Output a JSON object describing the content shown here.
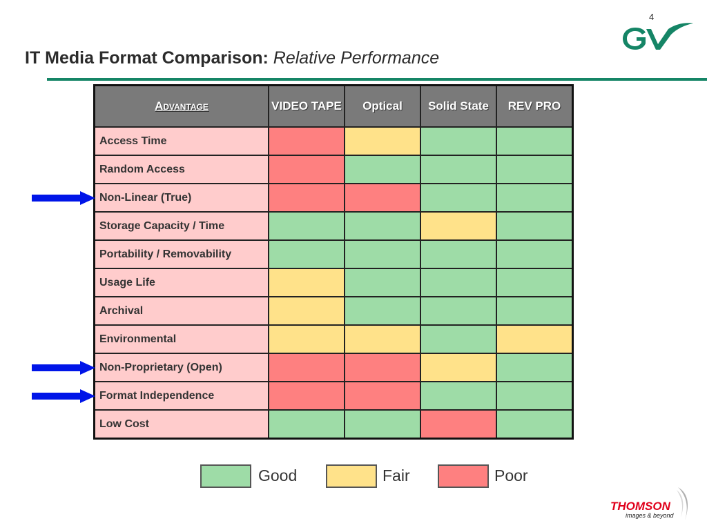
{
  "page_number": "4",
  "title": {
    "bold": "IT Media Format Comparison:",
    "italic": "Relative Performance"
  },
  "colors": {
    "accent_rule": "#158566",
    "header_bg": "#7a7a7a",
    "row_label_bg": "#ffcccc",
    "good": "#9edca7",
    "fair": "#ffe28a",
    "poor": "#fe8080",
    "arrow": "#0015e8"
  },
  "table": {
    "header_advantage": "Advantage",
    "columns": [
      "VIDEO TAPE",
      "Optical",
      "Solid State",
      "REV PRO"
    ],
    "rows": [
      {
        "label": "Access Time",
        "ratings": [
          "poor",
          "fair",
          "good",
          "good"
        ],
        "arrow": false
      },
      {
        "label": "Random Access",
        "ratings": [
          "poor",
          "good",
          "good",
          "good"
        ],
        "arrow": false
      },
      {
        "label": "Non-Linear (True)",
        "ratings": [
          "poor",
          "poor",
          "good",
          "good"
        ],
        "arrow": true
      },
      {
        "label": "Storage Capacity / Time",
        "ratings": [
          "good",
          "good",
          "fair",
          "good"
        ],
        "arrow": false
      },
      {
        "label": "Portability / Removability",
        "ratings": [
          "good",
          "good",
          "good",
          "good"
        ],
        "arrow": false
      },
      {
        "label": "Usage Life",
        "ratings": [
          "fair",
          "good",
          "good",
          "good"
        ],
        "arrow": false
      },
      {
        "label": "Archival",
        "ratings": [
          "fair",
          "good",
          "good",
          "good"
        ],
        "arrow": false
      },
      {
        "label": "Environmental",
        "ratings": [
          "fair",
          "fair",
          "good",
          "fair"
        ],
        "arrow": false
      },
      {
        "label": "Non-Proprietary (Open)",
        "ratings": [
          "poor",
          "poor",
          "fair",
          "good"
        ],
        "arrow": true
      },
      {
        "label": "Format Independence",
        "ratings": [
          "poor",
          "poor",
          "good",
          "good"
        ],
        "arrow": true
      },
      {
        "label": "Low Cost",
        "ratings": [
          "good",
          "good",
          "poor",
          "good"
        ],
        "arrow": false
      }
    ]
  },
  "legend": [
    {
      "label": "Good",
      "rating": "good"
    },
    {
      "label": "Fair",
      "rating": "fair"
    },
    {
      "label": "Poor",
      "rating": "poor"
    }
  ],
  "logos": {
    "top_right": "grass-valley-logo",
    "bottom_right_name": "THOMSON",
    "bottom_right_tagline": "images & beyond"
  }
}
